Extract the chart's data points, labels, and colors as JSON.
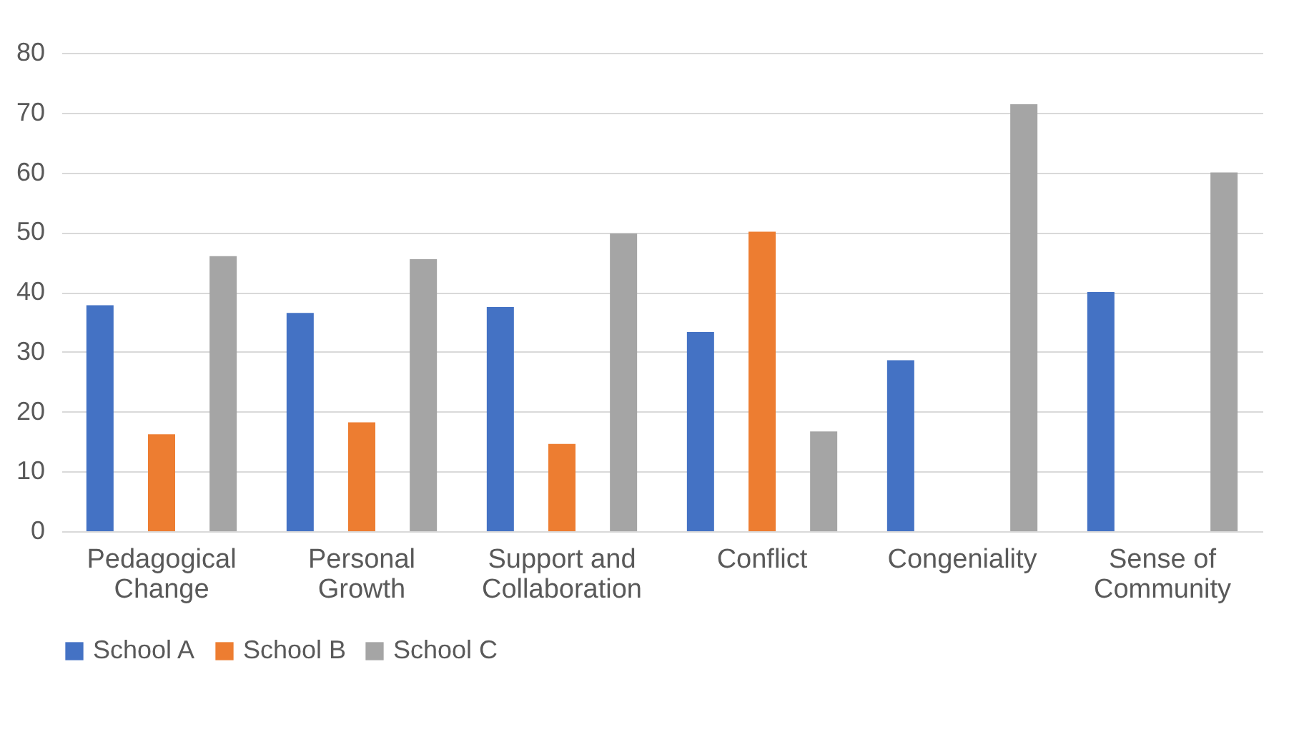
{
  "chart_data": {
    "type": "bar",
    "categories": [
      "Pedagogical Change",
      "Personal Growth",
      "Support and Collaboration",
      "Conflict",
      "Congeniality",
      "Sense of Community"
    ],
    "series": [
      {
        "name": "School A",
        "color": "#4472c4",
        "values": [
          37.8,
          36.5,
          37.5,
          33.3,
          28.6,
          40
        ]
      },
      {
        "name": "School B",
        "color": "#ed7d31",
        "values": [
          16.2,
          18.2,
          14.6,
          50.1,
          0,
          0
        ]
      },
      {
        "name": "School C",
        "color": "#a5a5a5",
        "values": [
          46,
          45.5,
          49.8,
          16.7,
          71.4,
          60
        ]
      }
    ],
    "ylim": [
      0,
      80
    ],
    "yticks": [
      0,
      10,
      20,
      30,
      40,
      50,
      60,
      70,
      80
    ],
    "grid": "y",
    "legend": "bottom"
  }
}
